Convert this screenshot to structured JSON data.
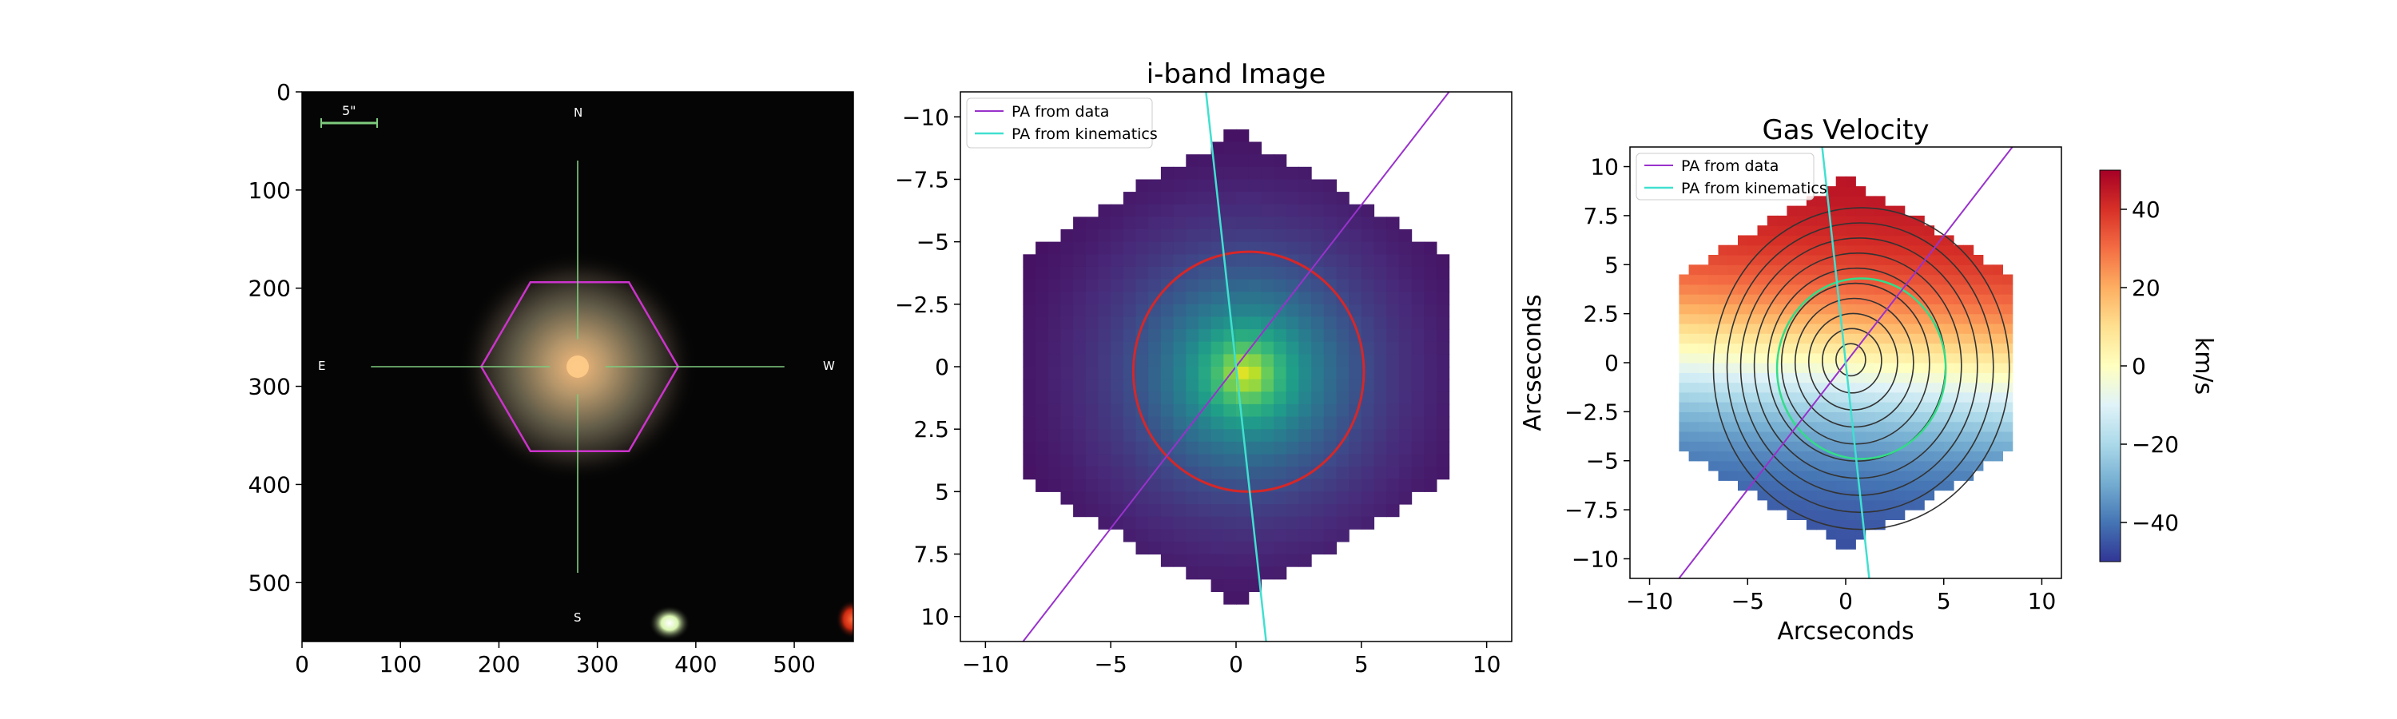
{
  "chart_data": [
    {
      "type": "image",
      "panel": "sdss-cutout",
      "title": "",
      "xlabel": "",
      "ylabel": "",
      "xlim": [
        0,
        560
      ],
      "ylim": [
        560,
        0
      ],
      "xticks": [
        0,
        100,
        200,
        300,
        400,
        500
      ],
      "yticks": [
        0,
        100,
        200,
        300,
        400,
        500
      ],
      "compass": {
        "north": "N",
        "south": "S",
        "east": "E",
        "west": "W"
      },
      "scale_bar_label": "5\"",
      "colors": {
        "background": "#050505",
        "hexagon": "#cc33cc",
        "crosshair": "#7ecb7e",
        "scale_bar": "#7ecb7e"
      },
      "galaxy_center": [
        280,
        280
      ],
      "hexagon_vertices": [
        [
          232,
          194
        ],
        [
          332,
          194
        ],
        [
          382,
          280
        ],
        [
          332,
          366
        ],
        [
          232,
          366
        ],
        [
          182,
          280
        ]
      ]
    },
    {
      "type": "heatmap",
      "panel": "i-band",
      "title": "i-band Image",
      "xlabel": "",
      "ylabel": "",
      "xlim": [
        -11,
        11
      ],
      "ylim": [
        -11,
        11
      ],
      "y_inverted": true,
      "xticks": [
        -10,
        -5,
        0,
        5,
        10
      ],
      "yticks": [
        -10.0,
        -7.5,
        -5.0,
        -2.5,
        0.0,
        2.5,
        5.0,
        7.5,
        10.0
      ],
      "colormap": "viridis",
      "ellipse": {
        "center": [
          0.5,
          0.2
        ],
        "semi_x": 4.6,
        "semi_y": 4.8,
        "color": "#d62728"
      },
      "lines": [
        {
          "name": "PA from data",
          "color": "#9932cc",
          "x": [
            -8.5,
            8.5
          ],
          "y": [
            11,
            -11
          ]
        },
        {
          "name": "PA from kinematics",
          "color": "#40e0d0",
          "x": [
            -1.2,
            1.2
          ],
          "y": [
            -11,
            11
          ]
        }
      ],
      "legend": {
        "placement": "upper-left",
        "entries": [
          "PA from data",
          "PA from kinematics"
        ]
      }
    },
    {
      "type": "heatmap",
      "panel": "gas-velocity",
      "title": "Gas Velocity",
      "xlabel": "Arcseconds",
      "ylabel": "Arcseconds",
      "xlim": [
        -11,
        11
      ],
      "ylim": [
        -11,
        11
      ],
      "y_inverted": false,
      "xticks": [
        -10,
        -5,
        0,
        5,
        10
      ],
      "yticks": [
        10.0,
        7.5,
        5.0,
        2.5,
        0.0,
        -2.5,
        -5.0,
        -7.5,
        -10.0
      ],
      "colormap": "RdYlBu_r",
      "ellipse": {
        "center": [
          0.8,
          -0.3
        ],
        "semi_x": 4.3,
        "semi_y": 4.6,
        "color": "#33dd88"
      },
      "contour_levels": 10,
      "lines": [
        {
          "name": "PA from data",
          "color": "#9932cc",
          "x": [
            -8.5,
            8.5
          ],
          "y": [
            -11,
            11
          ]
        },
        {
          "name": "PA from kinematics",
          "color": "#40e0d0",
          "x": [
            -1.2,
            1.2
          ],
          "y": [
            11,
            -11
          ]
        }
      ],
      "legend": {
        "placement": "upper-left",
        "entries": [
          "PA from data",
          "PA from kinematics"
        ]
      },
      "colorbar": {
        "label": "km/s",
        "range": [
          -50,
          50
        ],
        "ticks": [
          40,
          20,
          0,
          -20,
          -40
        ],
        "tick_labels": [
          "40",
          "20",
          "0",
          "−20",
          "−40"
        ]
      }
    }
  ]
}
